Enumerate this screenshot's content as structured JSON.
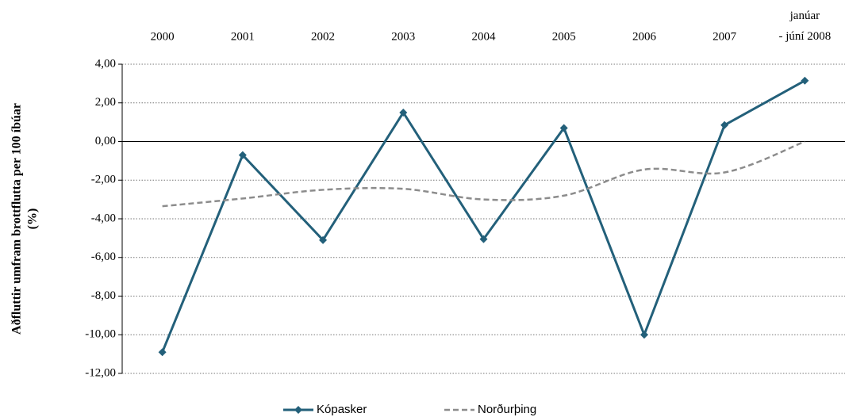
{
  "chart_data": {
    "type": "line",
    "categories": [
      "2000",
      "2001",
      "2002",
      "2003",
      "2004",
      "2005",
      "2006",
      "2007",
      "janúar\n- júní 2008"
    ],
    "series": [
      {
        "name": "Kópasker",
        "color": "#23607a",
        "values": [
          -10.9,
          -0.7,
          -5.1,
          1.5,
          -5.05,
          0.7,
          -10.0,
          0.85,
          3.15
        ]
      },
      {
        "name": "Norðurþing",
        "color": "#8c8c8c",
        "dashed": true,
        "smooth": true,
        "values": [
          -3.35,
          -2.95,
          -2.5,
          -2.45,
          -3.0,
          -2.8,
          -1.45,
          -1.6,
          0.0
        ]
      }
    ],
    "ylabel": [
      "Aðfluttir umfram brottflutta per 100 íbúar",
      "(%)"
    ],
    "ylim": [
      -12,
      4
    ],
    "yticks": [
      {
        "value": -12,
        "label": "-12,00"
      },
      {
        "value": -10,
        "label": "-10,00"
      },
      {
        "value": -8,
        "label": "-8,00"
      },
      {
        "value": -6,
        "label": "-6,00"
      },
      {
        "value": -4,
        "label": "-4,00"
      },
      {
        "value": -2,
        "label": "-2,00"
      },
      {
        "value": 0,
        "label": "0,00"
      },
      {
        "value": 2,
        "label": "2,00"
      },
      {
        "value": 4,
        "label": "4,00"
      }
    ],
    "grid": true,
    "legend": "bottom"
  }
}
